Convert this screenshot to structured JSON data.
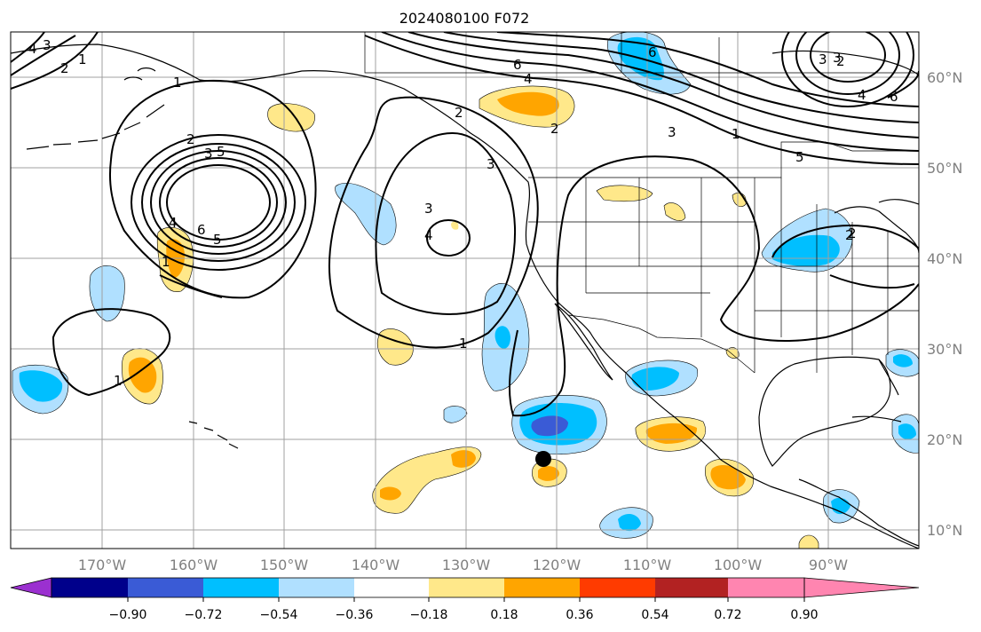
{
  "figure": {
    "title": "2024080100 F072"
  },
  "axes": {
    "lon_ticks": [
      "170°W",
      "160°W",
      "150°W",
      "140°W",
      "130°W",
      "120°W",
      "110°W",
      "100°W",
      "90°W"
    ],
    "lat_ticks": [
      "60°N",
      "50°N",
      "40°N",
      "30°N",
      "20°N",
      "10°N"
    ],
    "gridlines": true
  },
  "colorbar": {
    "tick_labels": [
      "−0.90",
      "−0.72",
      "−0.54",
      "−0.36",
      "−0.18",
      "0.18",
      "0.36",
      "0.54",
      "0.72",
      "0.90"
    ],
    "colors": [
      "#9b30d0",
      "#00008b",
      "#3a5bd6",
      "#00bfff",
      "#b0e0ff",
      "#ffffff",
      "#ffe88a",
      "#ffa500",
      "#ff3b00",
      "#b22222",
      "#ff85b0"
    ],
    "extend": "both"
  },
  "contour_labels": [
    "4",
    "3",
    "2",
    "1",
    "3",
    "2",
    "6",
    "5",
    "4",
    "6",
    "2",
    "3",
    "4",
    "5",
    "6",
    "2",
    "3",
    "1",
    "4",
    "3",
    "2",
    "1",
    "3",
    "2",
    "1",
    "3",
    "4",
    "6",
    "5",
    "1",
    "1",
    "2"
  ],
  "marker": {
    "name": "black-dot",
    "color": "#000000"
  },
  "palette": {
    "land_line": "#000000",
    "grid": "#a0a0a0",
    "contour": "#000000"
  }
}
